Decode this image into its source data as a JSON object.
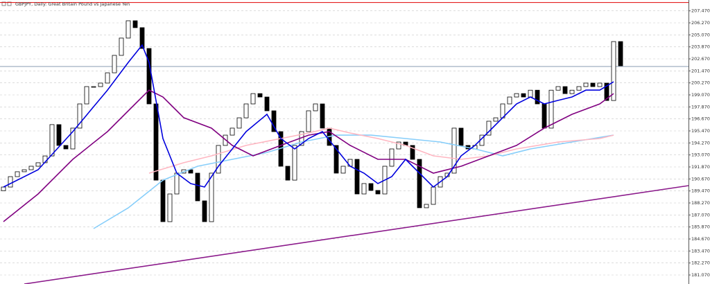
{
  "chart_data": {
    "type": "candlestick",
    "title": "GBPJPY, Daily:  Great Britain Pound vs Japanese Yen",
    "ylim": [
      180.17,
      208.555
    ],
    "xlim": [
      -0.5,
      98.8
    ],
    "grid": true,
    "up_color": "#ffffff",
    "down_color": "#000000",
    "yticks": [
      {
        "value": 207.47,
        "label": "207.470"
      },
      {
        "value": 206.27,
        "label": "206.270"
      },
      {
        "value": 205.07,
        "label": "205.070"
      },
      {
        "value": 203.87,
        "label": "203.870"
      },
      {
        "value": 202.67,
        "label": "202.670"
      },
      {
        "value": 201.47,
        "label": "201.470"
      },
      {
        "value": 200.27,
        "label": "200.270"
      },
      {
        "value": 199.07,
        "label": "199.070"
      },
      {
        "value": 197.87,
        "label": "197.870"
      },
      {
        "value": 196.67,
        "label": "196.670"
      },
      {
        "value": 195.47,
        "label": "195.470"
      },
      {
        "value": 194.27,
        "label": "194.270"
      },
      {
        "value": 193.07,
        "label": "193.070"
      },
      {
        "value": 191.87,
        "label": "191.870"
      },
      {
        "value": 190.67,
        "label": "190.670"
      },
      {
        "value": 189.47,
        "label": "189.470"
      },
      {
        "value": 188.27,
        "label": "188.270"
      },
      {
        "value": 187.07,
        "label": "187.070"
      },
      {
        "value": 185.87,
        "label": "185.870"
      },
      {
        "value": 184.67,
        "label": "184.670"
      },
      {
        "value": 183.47,
        "label": "183.470"
      },
      {
        "value": 182.27,
        "label": "182.270"
      },
      {
        "value": 181.07,
        "label": "181.070"
      }
    ],
    "open": [
      189.5,
      189.86,
      190.9,
      191.39,
      191.59,
      191.94,
      192.29,
      192.97,
      196.1,
      194.02,
      193.67,
      195.75,
      198.17,
      199.9,
      199.9,
      200.25,
      201.28,
      203.02,
      204.75,
      206.48,
      205.79,
      203.71,
      198.17,
      190.55,
      186.4,
      189.17,
      191.25,
      191.59,
      191.25,
      188.48,
      186.4,
      191.25,
      194.02,
      195.05,
      195.75,
      196.78,
      198.17,
      199.2,
      198.86,
      197.48,
      195.4,
      191.94,
      190.55,
      194.02,
      195.4,
      197.48,
      198.17,
      195.75,
      194.02,
      191.25,
      191.94,
      192.63,
      189.17,
      190.21,
      189.52,
      189.17,
      191.94,
      193.67,
      194.36,
      194.02,
      192.63,
      187.79,
      188.13,
      189.86,
      190.9,
      191.25,
      195.75,
      194.02,
      193.67,
      194.02,
      195.05,
      196.44,
      196.78,
      198.17,
      198.86,
      199.2,
      198.86,
      199.54,
      198.17,
      195.75,
      199.54,
      199.9,
      199.2,
      199.54,
      199.9,
      200.25,
      199.9,
      200.25,
      198.51,
      204.4
    ],
    "close": [
      189.86,
      190.9,
      191.39,
      191.59,
      191.94,
      192.29,
      192.97,
      196.1,
      194.02,
      193.67,
      195.75,
      198.17,
      199.9,
      199.9,
      200.25,
      201.28,
      203.02,
      204.75,
      206.48,
      205.79,
      203.71,
      198.17,
      190.55,
      186.4,
      189.17,
      191.25,
      191.59,
      191.25,
      188.48,
      186.4,
      191.25,
      194.02,
      195.05,
      195.75,
      196.78,
      198.17,
      199.2,
      198.86,
      197.48,
      195.4,
      191.94,
      190.55,
      194.02,
      195.4,
      197.48,
      198.17,
      195.75,
      194.02,
      191.25,
      191.94,
      192.63,
      189.17,
      190.21,
      189.52,
      189.17,
      191.94,
      193.67,
      194.36,
      194.02,
      192.63,
      187.79,
      188.13,
      189.86,
      190.9,
      191.25,
      195.75,
      194.02,
      193.67,
      194.02,
      195.05,
      196.44,
      196.78,
      198.17,
      198.86,
      199.2,
      198.86,
      199.54,
      198.17,
      195.75,
      199.54,
      199.9,
      199.2,
      199.54,
      199.9,
      200.25,
      199.9,
      200.25,
      198.51,
      204.4,
      201.98
    ],
    "lines": [
      {
        "color": "#87cefa",
        "x": [
          13,
          18,
          23,
          28,
          33,
          38,
          43,
          48,
          53,
          58,
          63,
          68,
          72,
          76,
          82,
          88
        ],
        "values": [
          185.71,
          187.78,
          190.55,
          191.94,
          192.63,
          193.32,
          194.36,
          195.05,
          195.05,
          194.71,
          194.36,
          193.67,
          192.98,
          193.67,
          194.36,
          195.05
        ]
      },
      {
        "color": "#ffb6c1",
        "x": [
          21,
          26,
          30,
          35,
          40,
          44,
          47,
          50,
          54,
          58,
          62,
          66,
          70,
          74,
          80,
          86,
          88
        ],
        "values": [
          191.25,
          192.29,
          192.98,
          194.02,
          194.71,
          195.26,
          195.75,
          195.26,
          194.71,
          194.02,
          192.98,
          192.63,
          192.98,
          193.67,
          194.36,
          194.71,
          195.05
        ]
      },
      {
        "color": "#800080",
        "x": [
          0,
          5,
          10,
          15,
          19,
          21,
          23,
          26,
          30,
          33,
          36,
          40,
          44,
          47,
          50,
          54,
          58,
          62,
          66,
          70,
          74,
          78,
          82,
          86,
          88
        ],
        "values": [
          186.4,
          189.17,
          192.63,
          195.4,
          198.17,
          199.55,
          198.86,
          196.79,
          195.75,
          194.02,
          192.98,
          194.02,
          195.05,
          195.4,
          194.02,
          192.63,
          192.63,
          191.25,
          191.94,
          192.98,
          194.02,
          195.75,
          197.13,
          198.17,
          199.2
        ]
      },
      {
        "color": "#0000dd",
        "x": [
          0,
          5,
          10,
          15,
          18,
          20,
          21,
          23,
          25,
          27,
          29,
          31,
          33,
          35,
          38,
          40,
          42,
          44,
          46,
          48,
          50,
          52,
          54,
          56,
          58,
          60,
          62,
          64,
          66,
          68,
          70,
          72,
          74,
          76,
          78,
          80,
          82,
          84,
          86,
          88
        ],
        "values": [
          189.86,
          191.59,
          195.4,
          199.55,
          202.32,
          204.05,
          202.32,
          194.71,
          191.25,
          190.21,
          189.86,
          191.94,
          193.67,
          195.4,
          197.13,
          194.71,
          193.67,
          194.71,
          195.4,
          193.67,
          191.94,
          191.25,
          190.21,
          190.9,
          192.63,
          191.25,
          189.86,
          190.9,
          192.98,
          194.02,
          195.4,
          196.79,
          198.17,
          198.86,
          198.17,
          198.52,
          198.86,
          199.55,
          199.55,
          200.38
        ]
      },
      {
        "color": "#8b1a8b",
        "x": [
          3,
          98.8
        ],
        "values": [
          180.17,
          190.0
        ]
      }
    ],
    "levels": [
      {
        "value": 208.3,
        "color": "#e00000"
      },
      {
        "value": 201.91,
        "color": "#8a9bb0"
      }
    ]
  }
}
